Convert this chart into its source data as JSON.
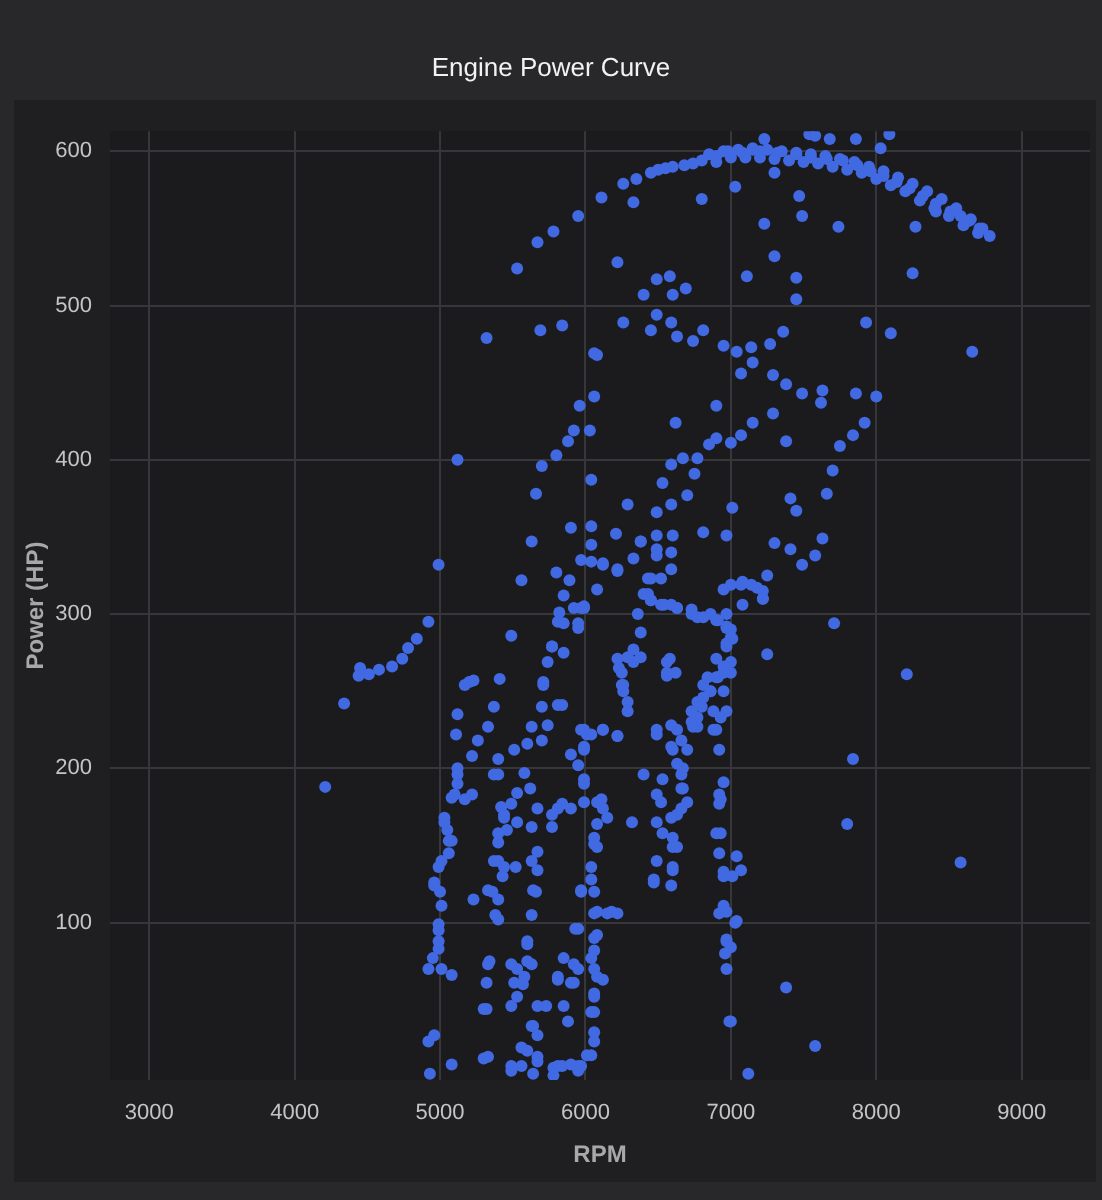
{
  "chart_data": {
    "type": "scatter",
    "title": "Engine Power Curve",
    "xlabel": "RPM",
    "ylabel": "Power (HP)",
    "color": "#4169e1",
    "marker": "circle",
    "grid": true,
    "xlim": [
      2730,
      9470
    ],
    "ylim": [
      -2,
      613
    ],
    "xticks": [
      3000,
      4000,
      5000,
      6000,
      7000,
      8000,
      9000
    ],
    "yticks": [
      100,
      200,
      300,
      400,
      500,
      600
    ],
    "x": [
      5530,
      5670,
      5780,
      5950,
      6110,
      6260,
      6450,
      6600,
      6740,
      6900,
      7080,
      7200,
      7320,
      7450,
      7550,
      7660,
      7770,
      7870,
      7960,
      8050,
      8140,
      8230,
      8320,
      8410,
      8510,
      8580,
      8640,
      8710,
      8780,
      7000,
      7300,
      7600,
      7900,
      8200,
      8500,
      6980,
      7150,
      7230,
      7540,
      7580,
      7680,
      7860,
      8090,
      8030,
      7300,
      7030,
      6800,
      6330,
      7470,
      7490,
      7230,
      7740,
      8270,
      8410,
      8250,
      6220,
      7300,
      7110,
      7450,
      7450,
      6490,
      6580,
      6400,
      6600,
      6690,
      6490,
      6260,
      6450,
      6590,
      6630,
      6740,
      6810,
      6950,
      7040,
      7140,
      7150,
      7070,
      7270,
      7360,
      7290,
      7380,
      7490,
      7620,
      7630,
      7860,
      8000,
      7930,
      8100,
      8660,
      5320,
      5690,
      5840,
      6060,
      6080,
      6060,
      5960,
      5920,
      6030,
      5880,
      5800,
      5700,
      5120,
      6040,
      5660,
      7920,
      7840,
      7750,
      7700,
      7660,
      7410,
      7450,
      7290,
      7380,
      7150,
      7070,
      7000,
      6900,
      6850,
      6770,
      6670,
      6590,
      6530,
      6750,
      6620,
      6900,
      6700,
      6590,
      6490,
      6290,
      7630,
      7580,
      7410,
      7490,
      7300,
      6490,
      6600,
      6490,
      6380,
      6330,
      6210,
      6040,
      6040,
      5970,
      6120,
      6220,
      6080,
      5900,
      5630,
      5800,
      5890,
      5560,
      5850,
      5990,
      5820,
      5810,
      5950,
      5490,
      6590,
      6450,
      6430,
      6520,
      6630,
      6770,
      6900,
      6970,
      6950,
      7070,
      7140,
      7220,
      7250,
      6970,
      7010,
      6810,
      6450,
      6590,
      6730,
      6860,
      6970,
      7000,
      7220,
      7080,
      7710,
      7250,
      8210,
      4990,
      4920,
      4840,
      4780,
      4740,
      4670,
      4580,
      4510,
      4450,
      4440,
      4340,
      4210,
      5170,
      5230,
      5200,
      5120,
      5110,
      5260,
      5330,
      5220,
      5120,
      5120,
      5080,
      5220,
      5030,
      5080,
      5010,
      4960,
      5010,
      4990,
      4990,
      4920,
      5010,
      5080,
      5230,
      4920,
      4960,
      4930,
      5080,
      5300,
      5320,
      5340,
      5320,
      5400,
      5370,
      5410,
      5050,
      5060,
      5000,
      5370,
      5440,
      5400,
      5370,
      5430,
      5360,
      5400,
      5490,
      5510,
      5530,
      5520,
      5420,
      5460,
      5380,
      5630,
      5700,
      5600,
      5580,
      5620,
      5670,
      5770,
      5840,
      5630,
      5660,
      5630,
      5600,
      5530,
      5510,
      5580,
      5490,
      5630,
      5560,
      5670,
      5490,
      5640,
      5780,
      5730,
      5810,
      5880,
      5950,
      5920,
      5850,
      5930,
      5970,
      5840,
      5950,
      5900,
      5990,
      5970,
      5810,
      5740,
      5710,
      5770,
      5740,
      5990,
      5990,
      5850,
      5850,
      5570,
      5600,
      6010,
      6120,
      6220,
      6110,
      6120,
      6150,
      6060,
      6080,
      6040,
      6060,
      6060,
      6150,
      6220,
      6080,
      6060,
      6060,
      6120,
      6060,
      6060,
      6060,
      6010,
      5950,
      5780,
      5900,
      6230,
      6260,
      6290,
      6220,
      6330,
      6380,
      5990,
      5950,
      6320,
      6400,
      6490,
      6530,
      6520,
      6490,
      6490,
      6470,
      6590,
      6600,
      6600,
      6600,
      6630,
      6660,
      6670,
      6590,
      6630,
      6700,
      6770,
      6730,
      6770,
      6810,
      6900,
      6950,
      7000,
      6860,
      6950,
      6970,
      6900,
      6920,
      6950,
      6920,
      6920,
      6900,
      6920,
      6950,
      7040,
      7070,
      7010,
      6950,
      6920,
      7030,
      6970,
      7000,
      6960,
      6970,
      6990,
      7120,
      7380,
      7580,
      7840,
      7800,
      8580,
      6580,
      6840,
      6900,
      6730,
      6970,
      7010,
      6560,
      6620,
      6400,
      6450,
      6540,
      6630,
      6730,
      6810,
      6910,
      6970,
      7000,
      6970,
      6950,
      7000,
      6910,
      6860,
      6810,
      6800,
      6770,
      6740,
      6660,
      6600,
      6630,
      6660,
      6670,
      6700,
      6360,
      6380,
      6330,
      6290,
      6250,
      6250,
      6260,
      6290,
      6120,
      6040,
      6220,
      5990,
      6040,
      6120,
      6220,
      6380,
      6490,
      6590,
      6430,
      6520,
      7000,
      7080,
      7180,
      7220,
      5920,
      5970,
      5770,
      5710,
      5840,
      5700,
      5990,
      5950,
      5990,
      6080,
      6590,
      6490,
      6560,
      6560,
      6880,
      6930,
      6880,
      5120,
      5100,
      5170,
      5030,
      5060,
      4990,
      4960,
      4990,
      4990,
      4950,
      5400,
      5440,
      5530,
      5400,
      5630,
      5810,
      5770,
      5900,
      5400,
      5440,
      5330,
      5400,
      5670,
      5670,
      5640,
      5600,
      5490,
      5630,
      5530,
      5330,
      5300,
      5330,
      5670,
      5640,
      5670,
      5600,
      5670,
      5560,
      5490,
      5810,
      5850,
      5920,
      5810,
      5900,
      5970,
      6080,
      6060,
      6040,
      6080,
      6180,
      6060,
      6040,
      6080,
      6060,
      6040,
      6060,
      6040,
      5970,
      5950,
      6490,
      6530,
      6590,
      6630,
      6600,
      6470,
      6660,
      6930,
      6930,
      6950,
      6970,
      7040,
      6970,
      7000,
      6850,
      6950,
      7050,
      7150,
      7250,
      7350,
      7450,
      7550,
      7650,
      7750,
      7850,
      7950,
      8050,
      8150,
      8250,
      8350,
      8450,
      8550,
      8650,
      8730,
      6900,
      7100,
      7200,
      7400,
      7500,
      7700,
      7800,
      8000,
      8100,
      8300,
      8400,
      8600,
      8700,
      6350,
      6500,
      6550,
      6680,
      6800
    ],
    "values": [
      524,
      541,
      548,
      558,
      570,
      579,
      586,
      590,
      592,
      597,
      599,
      600,
      599,
      598,
      596,
      595,
      594,
      591,
      587,
      584,
      580,
      576,
      571,
      566,
      561,
      558,
      555,
      550,
      545,
      596,
      595,
      592,
      586,
      574,
      558,
      600,
      602,
      608,
      611,
      610,
      608,
      608,
      611,
      602,
      586,
      577,
      569,
      567,
      571,
      558,
      553,
      551,
      551,
      561,
      521,
      528,
      532,
      519,
      518,
      504,
      517,
      519,
      507,
      507,
      511,
      494,
      489,
      484,
      489,
      480,
      477,
      484,
      474,
      470,
      473,
      463,
      456,
      475,
      483,
      455,
      449,
      443,
      437,
      445,
      443,
      441,
      489,
      482,
      470,
      479,
      484,
      487,
      469,
      468,
      441,
      435,
      419,
      419,
      412,
      403,
      396,
      400,
      387,
      378,
      424,
      416,
      409,
      393,
      378,
      375,
      367,
      430,
      412,
      424,
      416,
      411,
      414,
      410,
      401,
      401,
      397,
      385,
      391,
      424,
      435,
      377,
      371,
      366,
      371,
      349,
      338,
      342,
      332,
      346,
      351,
      351,
      338,
      347,
      336,
      352,
      357,
      345,
      335,
      333,
      329,
      316,
      356,
      347,
      327,
      322,
      322,
      312,
      305,
      301,
      295,
      291,
      286,
      329,
      323,
      313,
      306,
      304,
      298,
      296,
      292,
      316,
      319,
      319,
      315,
      325,
      351,
      369,
      353,
      309,
      306,
      303,
      300,
      300,
      290,
      310,
      306,
      294,
      274,
      261,
      332,
      295,
      284,
      278,
      271,
      266,
      264,
      261,
      265,
      260,
      242,
      188,
      254,
      257,
      256,
      235,
      222,
      218,
      227,
      208,
      200,
      190,
      181,
      183,
      168,
      153,
      140,
      126,
      111,
      95,
      83,
      70,
      70,
      66,
      115,
      23,
      27,
      2,
      8,
      12,
      61,
      75,
      44,
      206,
      240,
      258,
      160,
      145,
      120,
      196,
      168,
      152,
      140,
      130,
      120,
      102,
      177,
      212,
      184,
      136,
      175,
      160,
      105,
      227,
      218,
      216,
      197,
      187,
      174,
      170,
      177,
      140,
      120,
      105,
      86,
      70,
      61,
      65,
      46,
      33,
      19,
      10,
      4,
      2,
      1,
      46,
      65,
      36,
      70,
      61,
      77,
      96,
      121,
      7,
      4,
      209,
      212,
      225,
      241,
      228,
      254,
      279,
      269,
      178,
      193,
      275,
      294,
      60,
      75,
      222,
      225,
      221,
      180,
      174,
      168,
      155,
      149,
      128,
      120,
      106,
      106,
      106,
      92,
      82,
      70,
      63,
      52,
      42,
      23,
      14,
      7,
      6,
      61,
      265,
      254,
      243,
      271,
      269,
      272,
      304,
      294,
      165,
      196,
      222,
      193,
      178,
      165,
      140,
      126,
      124,
      136,
      149,
      155,
      170,
      187,
      200,
      214,
      225,
      212,
      227,
      237,
      243,
      254,
      259,
      262,
      269,
      250,
      250,
      281,
      225,
      212,
      191,
      183,
      177,
      158,
      145,
      130,
      143,
      134,
      130,
      111,
      106,
      100,
      89,
      84,
      80,
      70,
      36,
      2,
      58,
      20,
      206,
      164,
      139,
      271,
      259,
      271,
      230,
      237,
      284,
      260,
      262,
      313,
      309,
      306,
      304,
      300,
      298,
      296,
      291,
      285,
      279,
      266,
      262,
      259,
      250,
      246,
      240,
      233,
      227,
      218,
      212,
      203,
      196,
      187,
      178,
      300,
      288,
      277,
      272,
      262,
      254,
      250,
      237,
      225,
      222,
      221,
      214,
      334,
      332,
      328,
      347,
      342,
      340,
      323,
      323,
      319,
      321,
      317,
      310,
      304,
      304,
      279,
      256,
      241,
      240,
      225,
      202,
      190,
      178,
      228,
      225,
      269,
      262,
      237,
      233,
      225,
      196,
      183,
      180,
      165,
      153,
      136,
      124,
      99,
      88,
      77,
      196,
      170,
      165,
      158,
      162,
      174,
      162,
      174,
      140,
      136,
      121,
      115,
      146,
      134,
      121,
      88,
      73,
      73,
      52,
      73,
      44,
      13,
      46,
      33,
      27,
      17,
      13,
      7,
      7,
      63,
      46,
      73,
      7,
      8,
      7,
      164,
      151,
      136,
      107,
      107,
      90,
      77,
      65,
      54,
      42,
      29,
      14,
      120,
      96,
      183,
      158,
      168,
      149,
      134,
      128,
      174,
      180,
      158,
      133,
      107,
      101,
      88,
      36,
      598,
      600,
      601,
      601,
      601,
      600,
      599,
      598,
      597,
      595,
      593,
      590,
      587,
      583,
      579,
      574,
      569,
      563,
      556,
      550,
      593,
      596,
      596,
      594,
      593,
      590,
      588,
      582,
      578,
      568,
      563,
      552,
      547,
      582,
      588,
      589,
      591,
      594
    ]
  }
}
